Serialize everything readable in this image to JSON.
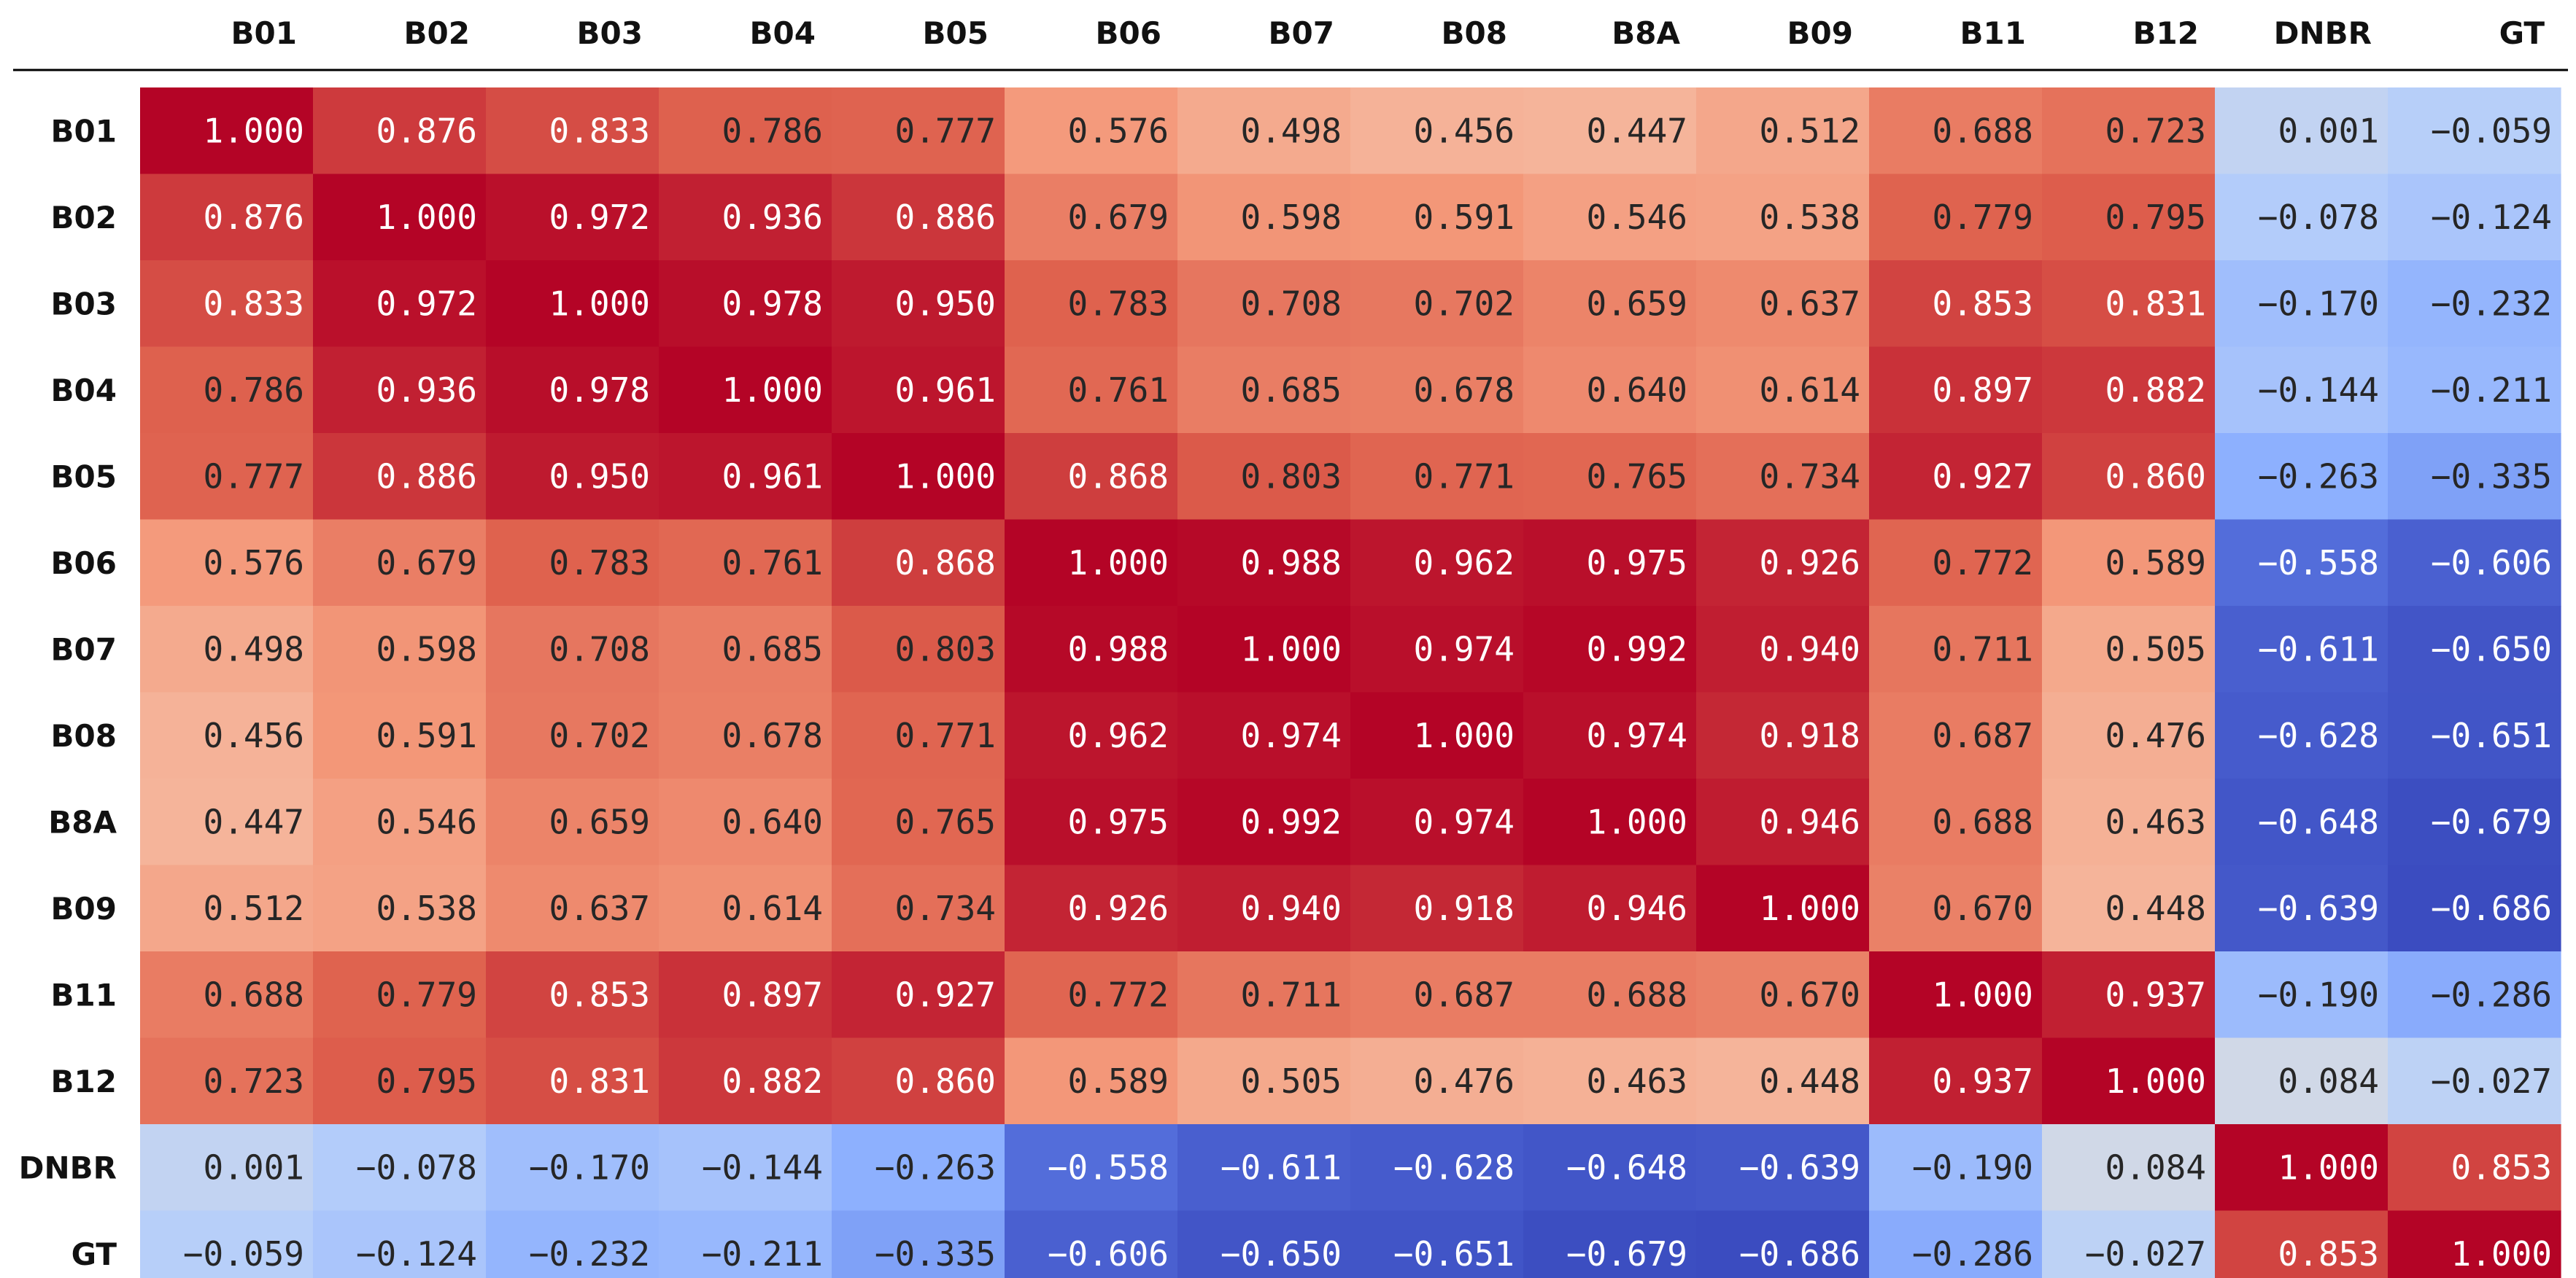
{
  "chart_data": {
    "type": "heatmap",
    "columns": [
      "B01",
      "B02",
      "B03",
      "B04",
      "B05",
      "B06",
      "B07",
      "B08",
      "B8A",
      "B09",
      "B11",
      "B12",
      "DNBR",
      "GT"
    ],
    "rows": [
      "B01",
      "B02",
      "B03",
      "B04",
      "B05",
      "B06",
      "B07",
      "B08",
      "B8A",
      "B09",
      "B11",
      "B12",
      "DNBR",
      "GT"
    ],
    "values": [
      [
        1.0,
        0.876,
        0.833,
        0.786,
        0.777,
        0.576,
        0.498,
        0.456,
        0.447,
        0.512,
        0.688,
        0.723,
        0.001,
        -0.059
      ],
      [
        0.876,
        1.0,
        0.972,
        0.936,
        0.886,
        0.679,
        0.598,
        0.591,
        0.546,
        0.538,
        0.779,
        0.795,
        -0.078,
        -0.124
      ],
      [
        0.833,
        0.972,
        1.0,
        0.978,
        0.95,
        0.783,
        0.708,
        0.702,
        0.659,
        0.637,
        0.853,
        0.831,
        -0.17,
        -0.232
      ],
      [
        0.786,
        0.936,
        0.978,
        1.0,
        0.961,
        0.761,
        0.685,
        0.678,
        0.64,
        0.614,
        0.897,
        0.882,
        -0.144,
        -0.211
      ],
      [
        0.777,
        0.886,
        0.95,
        0.961,
        1.0,
        0.868,
        0.803,
        0.771,
        0.765,
        0.734,
        0.927,
        0.86,
        -0.263,
        -0.335
      ],
      [
        0.576,
        0.679,
        0.783,
        0.761,
        0.868,
        1.0,
        0.988,
        0.962,
        0.975,
        0.926,
        0.772,
        0.589,
        -0.558,
        -0.606
      ],
      [
        0.498,
        0.598,
        0.708,
        0.685,
        0.803,
        0.988,
        1.0,
        0.974,
        0.992,
        0.94,
        0.711,
        0.505,
        -0.611,
        -0.65
      ],
      [
        0.456,
        0.591,
        0.702,
        0.678,
        0.771,
        0.962,
        0.974,
        1.0,
        0.974,
        0.918,
        0.687,
        0.476,
        -0.628,
        -0.651
      ],
      [
        0.447,
        0.546,
        0.659,
        0.64,
        0.765,
        0.975,
        0.992,
        0.974,
        1.0,
        0.946,
        0.688,
        0.463,
        -0.648,
        -0.679
      ],
      [
        0.512,
        0.538,
        0.637,
        0.614,
        0.734,
        0.926,
        0.94,
        0.918,
        0.946,
        1.0,
        0.67,
        0.448,
        -0.639,
        -0.686
      ],
      [
        0.688,
        0.779,
        0.853,
        0.897,
        0.927,
        0.772,
        0.711,
        0.687,
        0.688,
        0.67,
        1.0,
        0.937,
        -0.19,
        -0.286
      ],
      [
        0.723,
        0.795,
        0.831,
        0.882,
        0.86,
        0.589,
        0.505,
        0.476,
        0.463,
        0.448,
        0.937,
        1.0,
        0.084,
        -0.027
      ],
      [
        0.001,
        -0.078,
        -0.17,
        -0.144,
        -0.263,
        -0.558,
        -0.611,
        -0.628,
        -0.648,
        -0.639,
        -0.19,
        0.084,
        1.0,
        0.853
      ],
      [
        -0.059,
        -0.124,
        -0.232,
        -0.211,
        -0.335,
        -0.606,
        -0.65,
        -0.651,
        -0.679,
        -0.686,
        -0.286,
        -0.027,
        0.853,
        1.0
      ]
    ],
    "value_format": "3 decimals",
    "color_scale": "coolwarm",
    "color_range": [
      -0.686,
      1.0
    ],
    "legend": "none",
    "grid": false
  }
}
